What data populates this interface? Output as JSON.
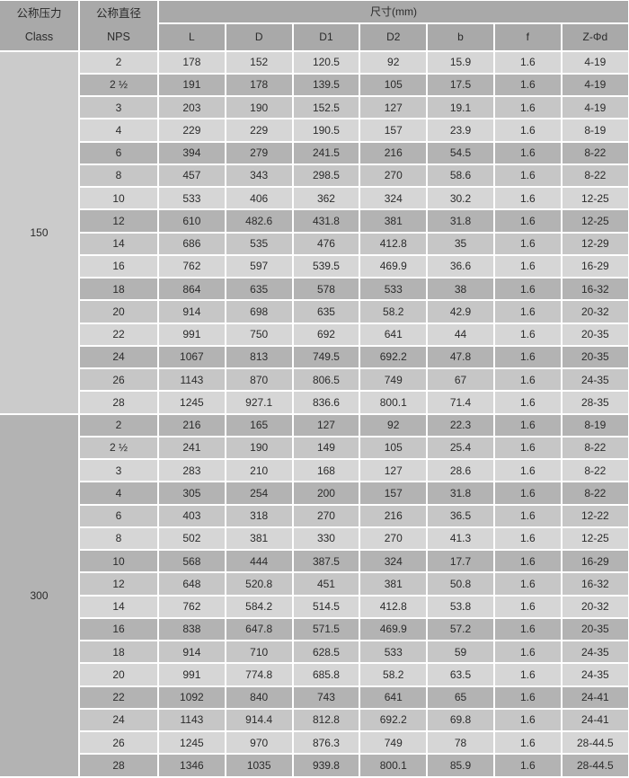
{
  "table": {
    "header": {
      "pressure": {
        "line1": "公称压力",
        "line2": "Class"
      },
      "diameter": {
        "line1": "公称直径",
        "line2": "NPS"
      },
      "size_title": "尺寸(mm)",
      "dim_columns": [
        "L",
        "D",
        "D1",
        "D2",
        "b",
        "f",
        "Z-Φd"
      ]
    },
    "sections": [
      {
        "class_label": "150",
        "rows": [
          {
            "nps": "2",
            "values": [
              "178",
              "152",
              "120.5",
              "92",
              "15.9",
              "1.6",
              "4-19"
            ]
          },
          {
            "nps": "2 ½",
            "values": [
              "191",
              "178",
              "139.5",
              "105",
              "17.5",
              "1.6",
              "4-19"
            ]
          },
          {
            "nps": "3",
            "values": [
              "203",
              "190",
              "152.5",
              "127",
              "19.1",
              "1.6",
              "4-19"
            ]
          },
          {
            "nps": "4",
            "values": [
              "229",
              "229",
              "190.5",
              "157",
              "23.9",
              "1.6",
              "8-19"
            ]
          },
          {
            "nps": "6",
            "values": [
              "394",
              "279",
              "241.5",
              "216",
              "54.5",
              "1.6",
              "8-22"
            ]
          },
          {
            "nps": "8",
            "values": [
              "457",
              "343",
              "298.5",
              "270",
              "58.6",
              "1.6",
              "8-22"
            ]
          },
          {
            "nps": "10",
            "values": [
              "533",
              "406",
              "362",
              "324",
              "30.2",
              "1.6",
              "12-25"
            ]
          },
          {
            "nps": "12",
            "values": [
              "610",
              "482.6",
              "431.8",
              "381",
              "31.8",
              "1.6",
              "12-25"
            ]
          },
          {
            "nps": "14",
            "values": [
              "686",
              "535",
              "476",
              "412.8",
              "35",
              "1.6",
              "12-29"
            ]
          },
          {
            "nps": "16",
            "values": [
              "762",
              "597",
              "539.5",
              "469.9",
              "36.6",
              "1.6",
              "16-29"
            ]
          },
          {
            "nps": "18",
            "values": [
              "864",
              "635",
              "578",
              "533",
              "38",
              "1.6",
              "16-32"
            ]
          },
          {
            "nps": "20",
            "values": [
              "914",
              "698",
              "635",
              "58.2",
              "42.9",
              "1.6",
              "20-32"
            ]
          },
          {
            "nps": "22",
            "values": [
              "991",
              "750",
              "692",
              "641",
              "44",
              "1.6",
              "20-35"
            ]
          },
          {
            "nps": "24",
            "values": [
              "1067",
              "813",
              "749.5",
              "692.2",
              "47.8",
              "1.6",
              "20-35"
            ]
          },
          {
            "nps": "26",
            "values": [
              "1143",
              "870",
              "806.5",
              "749",
              "67",
              "1.6",
              "24-35"
            ]
          },
          {
            "nps": "28",
            "values": [
              "1245",
              "927.1",
              "836.6",
              "800.1",
              "71.4",
              "1.6",
              "28-35"
            ]
          }
        ]
      },
      {
        "class_label": "300",
        "rows": [
          {
            "nps": "2",
            "values": [
              "216",
              "165",
              "127",
              "92",
              "22.3",
              "1.6",
              "8-19"
            ]
          },
          {
            "nps": "2 ½",
            "values": [
              "241",
              "190",
              "149",
              "105",
              "25.4",
              "1.6",
              "8-22"
            ]
          },
          {
            "nps": "3",
            "values": [
              "283",
              "210",
              "168",
              "127",
              "28.6",
              "1.6",
              "8-22"
            ]
          },
          {
            "nps": "4",
            "values": [
              "305",
              "254",
              "200",
              "157",
              "31.8",
              "1.6",
              "8-22"
            ]
          },
          {
            "nps": "6",
            "values": [
              "403",
              "318",
              "270",
              "216",
              "36.5",
              "1.6",
              "12-22"
            ]
          },
          {
            "nps": "8",
            "values": [
              "502",
              "381",
              "330",
              "270",
              "41.3",
              "1.6",
              "12-25"
            ]
          },
          {
            "nps": "10",
            "values": [
              "568",
              "444",
              "387.5",
              "324",
              "17.7",
              "1.6",
              "16-29"
            ]
          },
          {
            "nps": "12",
            "values": [
              "648",
              "520.8",
              "451",
              "381",
              "50.8",
              "1.6",
              "16-32"
            ]
          },
          {
            "nps": "14",
            "values": [
              "762",
              "584.2",
              "514.5",
              "412.8",
              "53.8",
              "1.6",
              "20-32"
            ]
          },
          {
            "nps": "16",
            "values": [
              "838",
              "647.8",
              "571.5",
              "469.9",
              "57.2",
              "1.6",
              "20-35"
            ]
          },
          {
            "nps": "18",
            "values": [
              "914",
              "710",
              "628.5",
              "533",
              "59",
              "1.6",
              "24-35"
            ]
          },
          {
            "nps": "20",
            "values": [
              "991",
              "774.8",
              "685.8",
              "58.2",
              "63.5",
              "1.6",
              "24-35"
            ]
          },
          {
            "nps": "22",
            "values": [
              "1092",
              "840",
              "743",
              "641",
              "65",
              "1.6",
              "24-41"
            ]
          },
          {
            "nps": "24",
            "values": [
              "1143",
              "914.4",
              "812.8",
              "692.2",
              "69.8",
              "1.6",
              "24-41"
            ]
          },
          {
            "nps": "26",
            "values": [
              "1245",
              "970",
              "876.3",
              "749",
              "78",
              "1.6",
              "28-44.5"
            ]
          },
          {
            "nps": "28",
            "values": [
              "1346",
              "1035",
              "939.8",
              "800.1",
              "85.9",
              "1.6",
              "28-44.5"
            ]
          }
        ]
      }
    ]
  },
  "colors": {
    "header_bg": "#a9a9a9",
    "row_light": "#d6d6d6",
    "row_dark": "#b3b3b3",
    "row_medium": "#c6c6c6",
    "class150_bg": "#cbcbcb",
    "class300_bg": "#b3b3b3",
    "border": "#ffffff",
    "text": "#2b2b2b"
  },
  "shade_cycle": [
    "light",
    "dark",
    "medium"
  ]
}
